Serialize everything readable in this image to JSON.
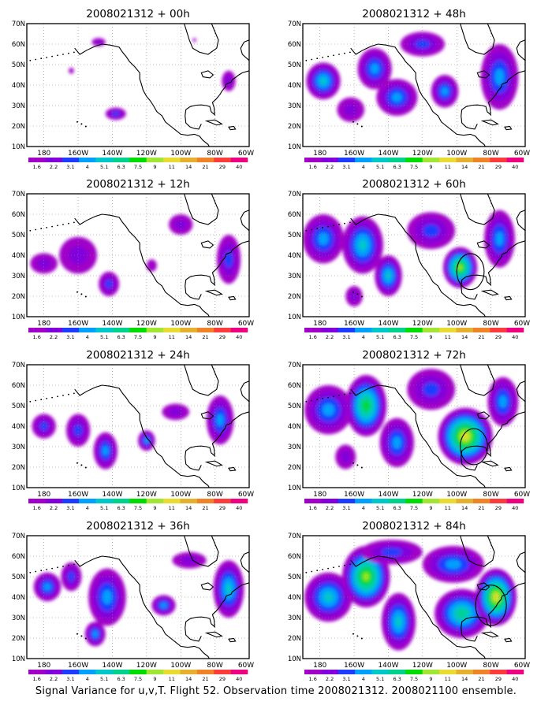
{
  "footer": "Signal Variance for u,v,T. Flight 52. Observation time 2008021312. 2008021100 ensemble.",
  "chart_data": {
    "type": "heatmap",
    "region": {
      "lon_range": [
        170,
        300
      ],
      "lat_range": [
        10,
        70
      ]
    },
    "x_ticks": {
      "values": [
        180,
        200,
        220,
        240,
        260,
        280,
        300
      ],
      "labels": [
        "180",
        "160W",
        "140W",
        "120W",
        "100W",
        "80W",
        "60W"
      ]
    },
    "y_ticks": {
      "values": [
        10,
        20,
        30,
        40,
        50,
        60,
        70
      ],
      "labels": [
        "10N",
        "20N",
        "30N",
        "40N",
        "50N",
        "60N",
        "70N"
      ]
    },
    "grid": "dotted",
    "colorbar": {
      "levels": [
        "1.6",
        "2.2",
        "3.1",
        "4",
        "5.1",
        "6.3",
        "7.5",
        "9",
        "11",
        "14",
        "21",
        "29",
        "40"
      ],
      "colors": [
        "#a000c8",
        "#8200dc",
        "#1e3cff",
        "#00a0ff",
        "#00c8c8",
        "#00d28c",
        "#00dc00",
        "#a0e632",
        "#e6dc32",
        "#e6af2d",
        "#f08228",
        "#fa3c3c",
        "#f00082"
      ]
    },
    "panels": [
      {
        "title": "2008021312 + 00h",
        "blobs": [
          [
            212,
            61,
            4,
            2,
            2
          ],
          [
            196,
            47,
            1.5,
            1.5,
            1
          ],
          [
            222,
            26,
            6,
            3,
            3
          ],
          [
            288,
            42,
            4,
            5,
            2
          ],
          [
            268,
            62,
            1,
            1,
            1
          ]
        ],
        "circles": []
      },
      {
        "title": "2008021312 + 12h",
        "blobs": [
          [
            200,
            40,
            11,
            9,
            2
          ],
          [
            218,
            26,
            6,
            6,
            3
          ],
          [
            288,
            38,
            7,
            12,
            3
          ],
          [
            260,
            55,
            7,
            5,
            2
          ],
          [
            180,
            36,
            8,
            5,
            2
          ],
          [
            243,
            35,
            3,
            3,
            1
          ]
        ],
        "circles": []
      },
      {
        "title": "2008021312 + 24h",
        "blobs": [
          [
            180,
            40,
            7,
            6,
            3
          ],
          [
            200,
            38,
            7,
            8,
            3
          ],
          [
            216,
            28,
            7,
            9,
            4
          ],
          [
            240,
            33,
            5,
            5,
            4
          ],
          [
            283,
            43,
            8,
            12,
            4
          ],
          [
            257,
            47,
            8,
            4,
            2
          ]
        ],
        "circles": []
      },
      {
        "title": "2008021312 + 36h",
        "blobs": [
          [
            182,
            45,
            8,
            7,
            4
          ],
          [
            217,
            40,
            11,
            14,
            4
          ],
          [
            210,
            22,
            6,
            6,
            4
          ],
          [
            250,
            36,
            7,
            5,
            4
          ],
          [
            288,
            44,
            9,
            14,
            5
          ],
          [
            196,
            50,
            6,
            7,
            3
          ],
          [
            265,
            58,
            10,
            4,
            2
          ]
        ],
        "circles": []
      },
      {
        "title": "2008021312 + 48h",
        "blobs": [
          [
            182,
            42,
            10,
            9,
            5
          ],
          [
            212,
            48,
            10,
            10,
            4
          ],
          [
            225,
            34,
            12,
            9,
            4
          ],
          [
            253,
            37,
            8,
            8,
            4
          ],
          [
            285,
            44,
            11,
            16,
            4
          ],
          [
            240,
            60,
            13,
            6,
            3
          ],
          [
            198,
            28,
            8,
            6,
            2
          ]
        ],
        "circles": []
      },
      {
        "title": "2008021312 + 60h",
        "blobs": [
          [
            182,
            48,
            12,
            12,
            4
          ],
          [
            205,
            45,
            12,
            14,
            5
          ],
          [
            220,
            30,
            8,
            10,
            5
          ],
          [
            262,
            34,
            10,
            10,
            8
          ],
          [
            285,
            48,
            9,
            14,
            4
          ],
          [
            245,
            52,
            14,
            9,
            3
          ],
          [
            200,
            20,
            5,
            5,
            2
          ]
        ],
        "circles": [
          [
            268,
            32,
            8
          ]
        ]
      },
      {
        "title": "2008021312 + 72h",
        "blobs": [
          [
            185,
            48,
            14,
            12,
            4
          ],
          [
            207,
            50,
            12,
            15,
            7
          ],
          [
            225,
            32,
            10,
            12,
            4
          ],
          [
            265,
            35,
            16,
            14,
            9
          ],
          [
            287,
            52,
            9,
            12,
            4
          ],
          [
            245,
            58,
            14,
            10,
            3
          ],
          [
            195,
            25,
            6,
            6,
            2
          ]
        ],
        "circles": [
          [
            270,
            30,
            8
          ]
        ]
      },
      {
        "title": "2008021312 + 84h",
        "blobs": [
          [
            185,
            40,
            14,
            12,
            5
          ],
          [
            207,
            50,
            14,
            15,
            8
          ],
          [
            226,
            28,
            10,
            14,
            5
          ],
          [
            263,
            32,
            16,
            12,
            6
          ],
          [
            283,
            40,
            12,
            14,
            9
          ],
          [
            258,
            56,
            18,
            9,
            4
          ],
          [
            222,
            62,
            18,
            6,
            3
          ]
        ],
        "circles": [
          [
            280,
            36,
            9
          ]
        ]
      }
    ]
  }
}
